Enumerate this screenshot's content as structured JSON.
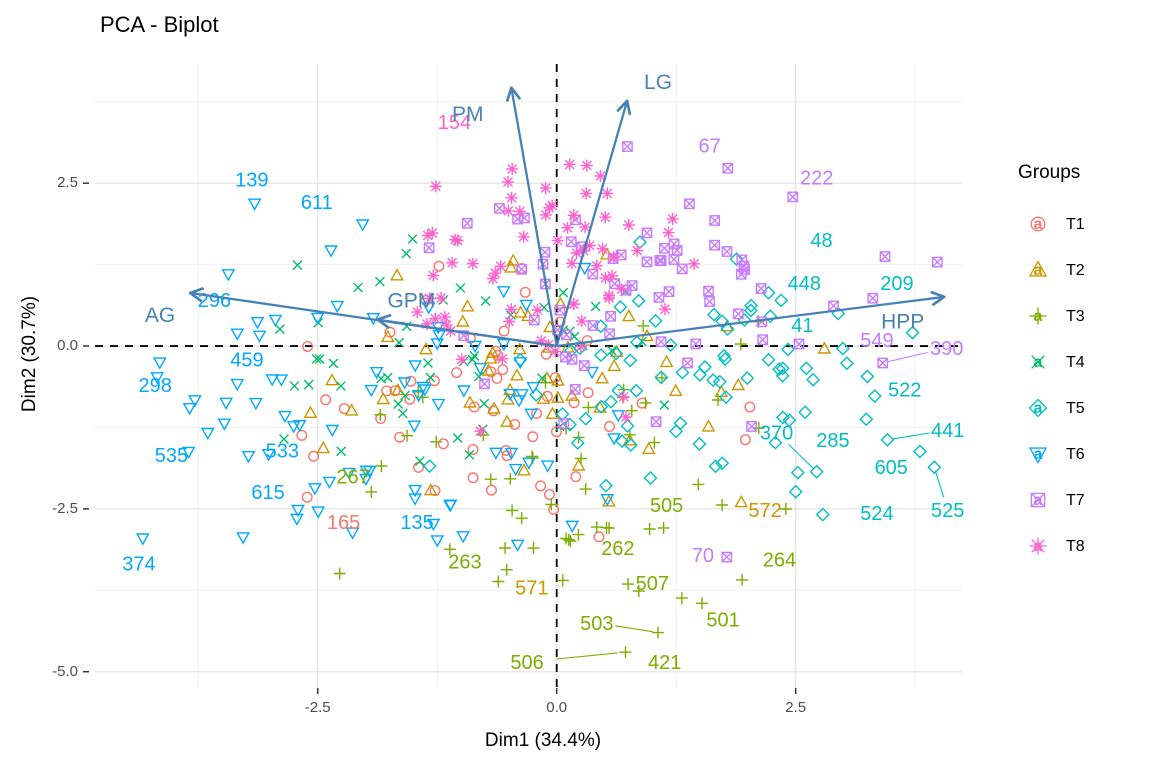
{
  "legend": {
    "title": "Groups"
  },
  "chart_data": {
    "type": "scatter",
    "title": "PCA - Biplot",
    "xlabel": "Dim1 (34.4%)",
    "ylabel": "Dim2 (30.7%)",
    "xlim": [
      -4.83,
      4.24
    ],
    "ylim": [
      -5.25,
      4.33
    ],
    "x_ticks": [
      {
        "v": -2.5,
        "label": "-2.5"
      },
      {
        "v": 0,
        "label": "0.0"
      },
      {
        "v": 2.5,
        "label": "2.5"
      }
    ],
    "y_ticks": [
      {
        "v": 2.5,
        "label": "2.5"
      },
      {
        "v": 0,
        "label": "0.0"
      },
      {
        "v": -2.5,
        "label": "-2.5"
      },
      {
        "v": -5,
        "label": "-5.0"
      }
    ],
    "grid": "major+minor",
    "legend_position": "right",
    "style": {
      "grid_major": "#e4e4e4",
      "grid_minor": "#f1f1f1",
      "zero_line": "#000000",
      "tick_mark": "#333333",
      "variable_color": "#4682B4"
    },
    "groups": [
      {
        "name": "T1",
        "color": "#F8766D",
        "shape": "circle"
      },
      {
        "name": "T2",
        "color": "#CD9600",
        "shape": "triangle-up"
      },
      {
        "name": "T3",
        "color": "#7CAE00",
        "shape": "plus"
      },
      {
        "name": "T4",
        "color": "#00BE67",
        "shape": "x"
      },
      {
        "name": "T5",
        "color": "#00BFC4",
        "shape": "diamond"
      },
      {
        "name": "T6",
        "color": "#00A9FF",
        "shape": "triangle-down"
      },
      {
        "name": "T7",
        "color": "#C77CFF",
        "shape": "square-x"
      },
      {
        "name": "T8",
        "color": "#FF61CC",
        "shape": "asterisk"
      }
    ],
    "variables": [
      {
        "name": "AG",
        "x": -3.81,
        "y": 0.81,
        "lx": -4.15,
        "ly": 0.48
      },
      {
        "name": "GPM",
        "x": -1.85,
        "y": 0.4,
        "lx": -1.52,
        "ly": 0.7
      },
      {
        "name": "PM",
        "x": -0.47,
        "y": 3.93,
        "lx": -0.93,
        "ly": 3.56
      },
      {
        "name": "LG",
        "x": 0.73,
        "y": 3.73,
        "lx": 1.06,
        "ly": 4.05
      },
      {
        "name": "HPP",
        "x": 4.03,
        "y": 0.75,
        "lx": 3.62,
        "ly": 0.38
      }
    ],
    "labeled_points": [
      {
        "label": "139",
        "group": "T6",
        "lx": -3.19,
        "ly": 2.56,
        "px": -3.16,
        "py": 2.19
      },
      {
        "label": "611",
        "group": "T6",
        "lx": -2.51,
        "ly": 2.21,
        "px": -2.03,
        "py": 1.87
      },
      {
        "label": "296",
        "group": "T6",
        "lx": -3.58,
        "ly": 0.71,
        "px": -3.13,
        "py": 0.37
      },
      {
        "label": "459",
        "group": "T6",
        "lx": -3.24,
        "ly": -0.21,
        "px": -2.88,
        "py": -0.51
      },
      {
        "label": "298",
        "group": "T6",
        "lx": -4.2,
        "ly": -0.6,
        "px": -3.84,
        "py": -0.95
      },
      {
        "label": "535",
        "group": "T6",
        "lx": -4.03,
        "ly": -1.67,
        "px": -3.65,
        "py": -1.33
      },
      {
        "label": "533",
        "group": "T6",
        "lx": -2.87,
        "ly": -1.6,
        "px": -2.69,
        "py": -1.21
      },
      {
        "label": "615",
        "group": "T6",
        "lx": -3.02,
        "ly": -2.24,
        "px": -2.53,
        "py": -2.18
      },
      {
        "label": "135",
        "group": "T6",
        "lx": -1.46,
        "ly": -2.7,
        "px": -1.25,
        "py": -2.98
      },
      {
        "label": "374",
        "group": "T6",
        "lx": -4.37,
        "ly": -3.34,
        "px": -4.33,
        "py": -2.95
      },
      {
        "label": "165",
        "group": "T1",
        "lx": -2.23,
        "ly": -2.7,
        "px": -2.61,
        "py": -2.32
      },
      {
        "label": "267",
        "group": "T3",
        "lx": -2.13,
        "ly": -2.0,
        "px": -1.94,
        "py": -2.24
      },
      {
        "label": "263",
        "group": "T3",
        "lx": -0.96,
        "ly": -3.31,
        "px": -0.54,
        "py": -3.1
      },
      {
        "label": "262",
        "group": "T3",
        "lx": 0.64,
        "ly": -3.1,
        "px": 0.42,
        "py": -2.78
      },
      {
        "label": "507",
        "group": "T3",
        "lx": 1.0,
        "ly": -3.64,
        "px": 1.31,
        "py": -3.87
      },
      {
        "label": "505",
        "group": "T3",
        "lx": 1.15,
        "ly": -2.44,
        "px": 1.73,
        "py": -2.44
      },
      {
        "label": "501",
        "group": "T3",
        "lx": 1.74,
        "ly": -4.2,
        "px": 1.52,
        "py": -3.95
      },
      {
        "label": "503",
        "group": "T3",
        "lx": 0.42,
        "ly": -4.25,
        "px": 1.06,
        "py": -4.4,
        "leader": true
      },
      {
        "label": "506",
        "group": "T3",
        "lx": -0.31,
        "ly": -4.85,
        "px": 0.72,
        "py": -4.7,
        "leader": true
      },
      {
        "label": "421",
        "group": "T3",
        "lx": 1.13,
        "ly": -4.85
      },
      {
        "label": "264",
        "group": "T3",
        "lx": 2.33,
        "ly": -3.28,
        "px": 1.94,
        "py": -3.59
      },
      {
        "label": "571",
        "group": "T2",
        "lx": -0.26,
        "ly": -3.71
      },
      {
        "label": "572",
        "group": "T2",
        "lx": 2.18,
        "ly": -2.52,
        "px": 1.93,
        "py": -2.4
      },
      {
        "label": "48",
        "group": "T5",
        "lx": 2.77,
        "ly": 1.63
      },
      {
        "label": "448",
        "group": "T5",
        "lx": 2.59,
        "ly": 0.97
      },
      {
        "label": "209",
        "group": "T5",
        "lx": 3.56,
        "ly": 0.97
      },
      {
        "label": "41",
        "group": "T5",
        "lx": 2.57,
        "ly": 0.32
      },
      {
        "label": "522",
        "group": "T5",
        "lx": 3.64,
        "ly": -0.67
      },
      {
        "label": "370",
        "group": "T5",
        "lx": 2.3,
        "ly": -1.33,
        "px": 2.72,
        "py": -1.93,
        "leader": true
      },
      {
        "label": "285",
        "group": "T5",
        "lx": 2.89,
        "ly": -1.44
      },
      {
        "label": "441",
        "group": "T5",
        "lx": 4.09,
        "ly": -1.29,
        "px": 3.46,
        "py": -1.44,
        "leader": true
      },
      {
        "label": "605",
        "group": "T5",
        "lx": 3.5,
        "ly": -1.86
      },
      {
        "label": "524",
        "group": "T5",
        "lx": 3.35,
        "ly": -2.56
      },
      {
        "label": "525",
        "group": "T5",
        "lx": 4.09,
        "ly": -2.52,
        "px": 3.95,
        "py": -1.86,
        "leader": true
      },
      {
        "label": "67",
        "group": "T7",
        "lx": 1.6,
        "ly": 3.08,
        "px": 1.79,
        "py": 2.73
      },
      {
        "label": "222",
        "group": "T7",
        "lx": 2.72,
        "ly": 2.59,
        "px": 2.47,
        "py": 2.29
      },
      {
        "label": "549",
        "group": "T7",
        "lx": 3.35,
        "ly": 0.09
      },
      {
        "label": "390",
        "group": "T7",
        "lx": 4.08,
        "ly": -0.03,
        "px": 3.41,
        "py": -0.26,
        "leader": true
      },
      {
        "label": "70",
        "group": "T7",
        "lx": 1.53,
        "ly": -3.21,
        "px": 1.78,
        "py": -3.24
      },
      {
        "label": "154",
        "group": "T8",
        "lx": -1.07,
        "ly": 3.44
      }
    ],
    "scatter": {
      "seed": 1337,
      "clusters": [
        {
          "group": "T1",
          "n": 55,
          "cx": -0.55,
          "cy": -0.75,
          "sx": 1.05,
          "sy": 0.95
        },
        {
          "group": "T2",
          "n": 55,
          "cx": -0.35,
          "cy": -0.4,
          "sx": 1.05,
          "sy": 1.05
        },
        {
          "group": "T3",
          "n": 50,
          "cx": 0.25,
          "cy": -1.7,
          "sx": 0.95,
          "sy": 1.15
        },
        {
          "group": "T4",
          "n": 50,
          "cx": -0.6,
          "cy": -0.05,
          "sx": 1.0,
          "sy": 0.85
        },
        {
          "group": "T5",
          "n": 75,
          "cx": 1.7,
          "cy": -0.45,
          "sx": 1.15,
          "sy": 0.85
        },
        {
          "group": "T6",
          "n": 75,
          "cx": -1.6,
          "cy": -0.75,
          "sx": 1.15,
          "sy": 1.05
        },
        {
          "group": "T7",
          "n": 68,
          "cx": 1.05,
          "cy": 0.95,
          "sx": 1.05,
          "sy": 0.95
        },
        {
          "group": "T8",
          "n": 72,
          "cx": -0.05,
          "cy": 1.15,
          "sx": 0.8,
          "sy": 0.95
        }
      ]
    }
  }
}
